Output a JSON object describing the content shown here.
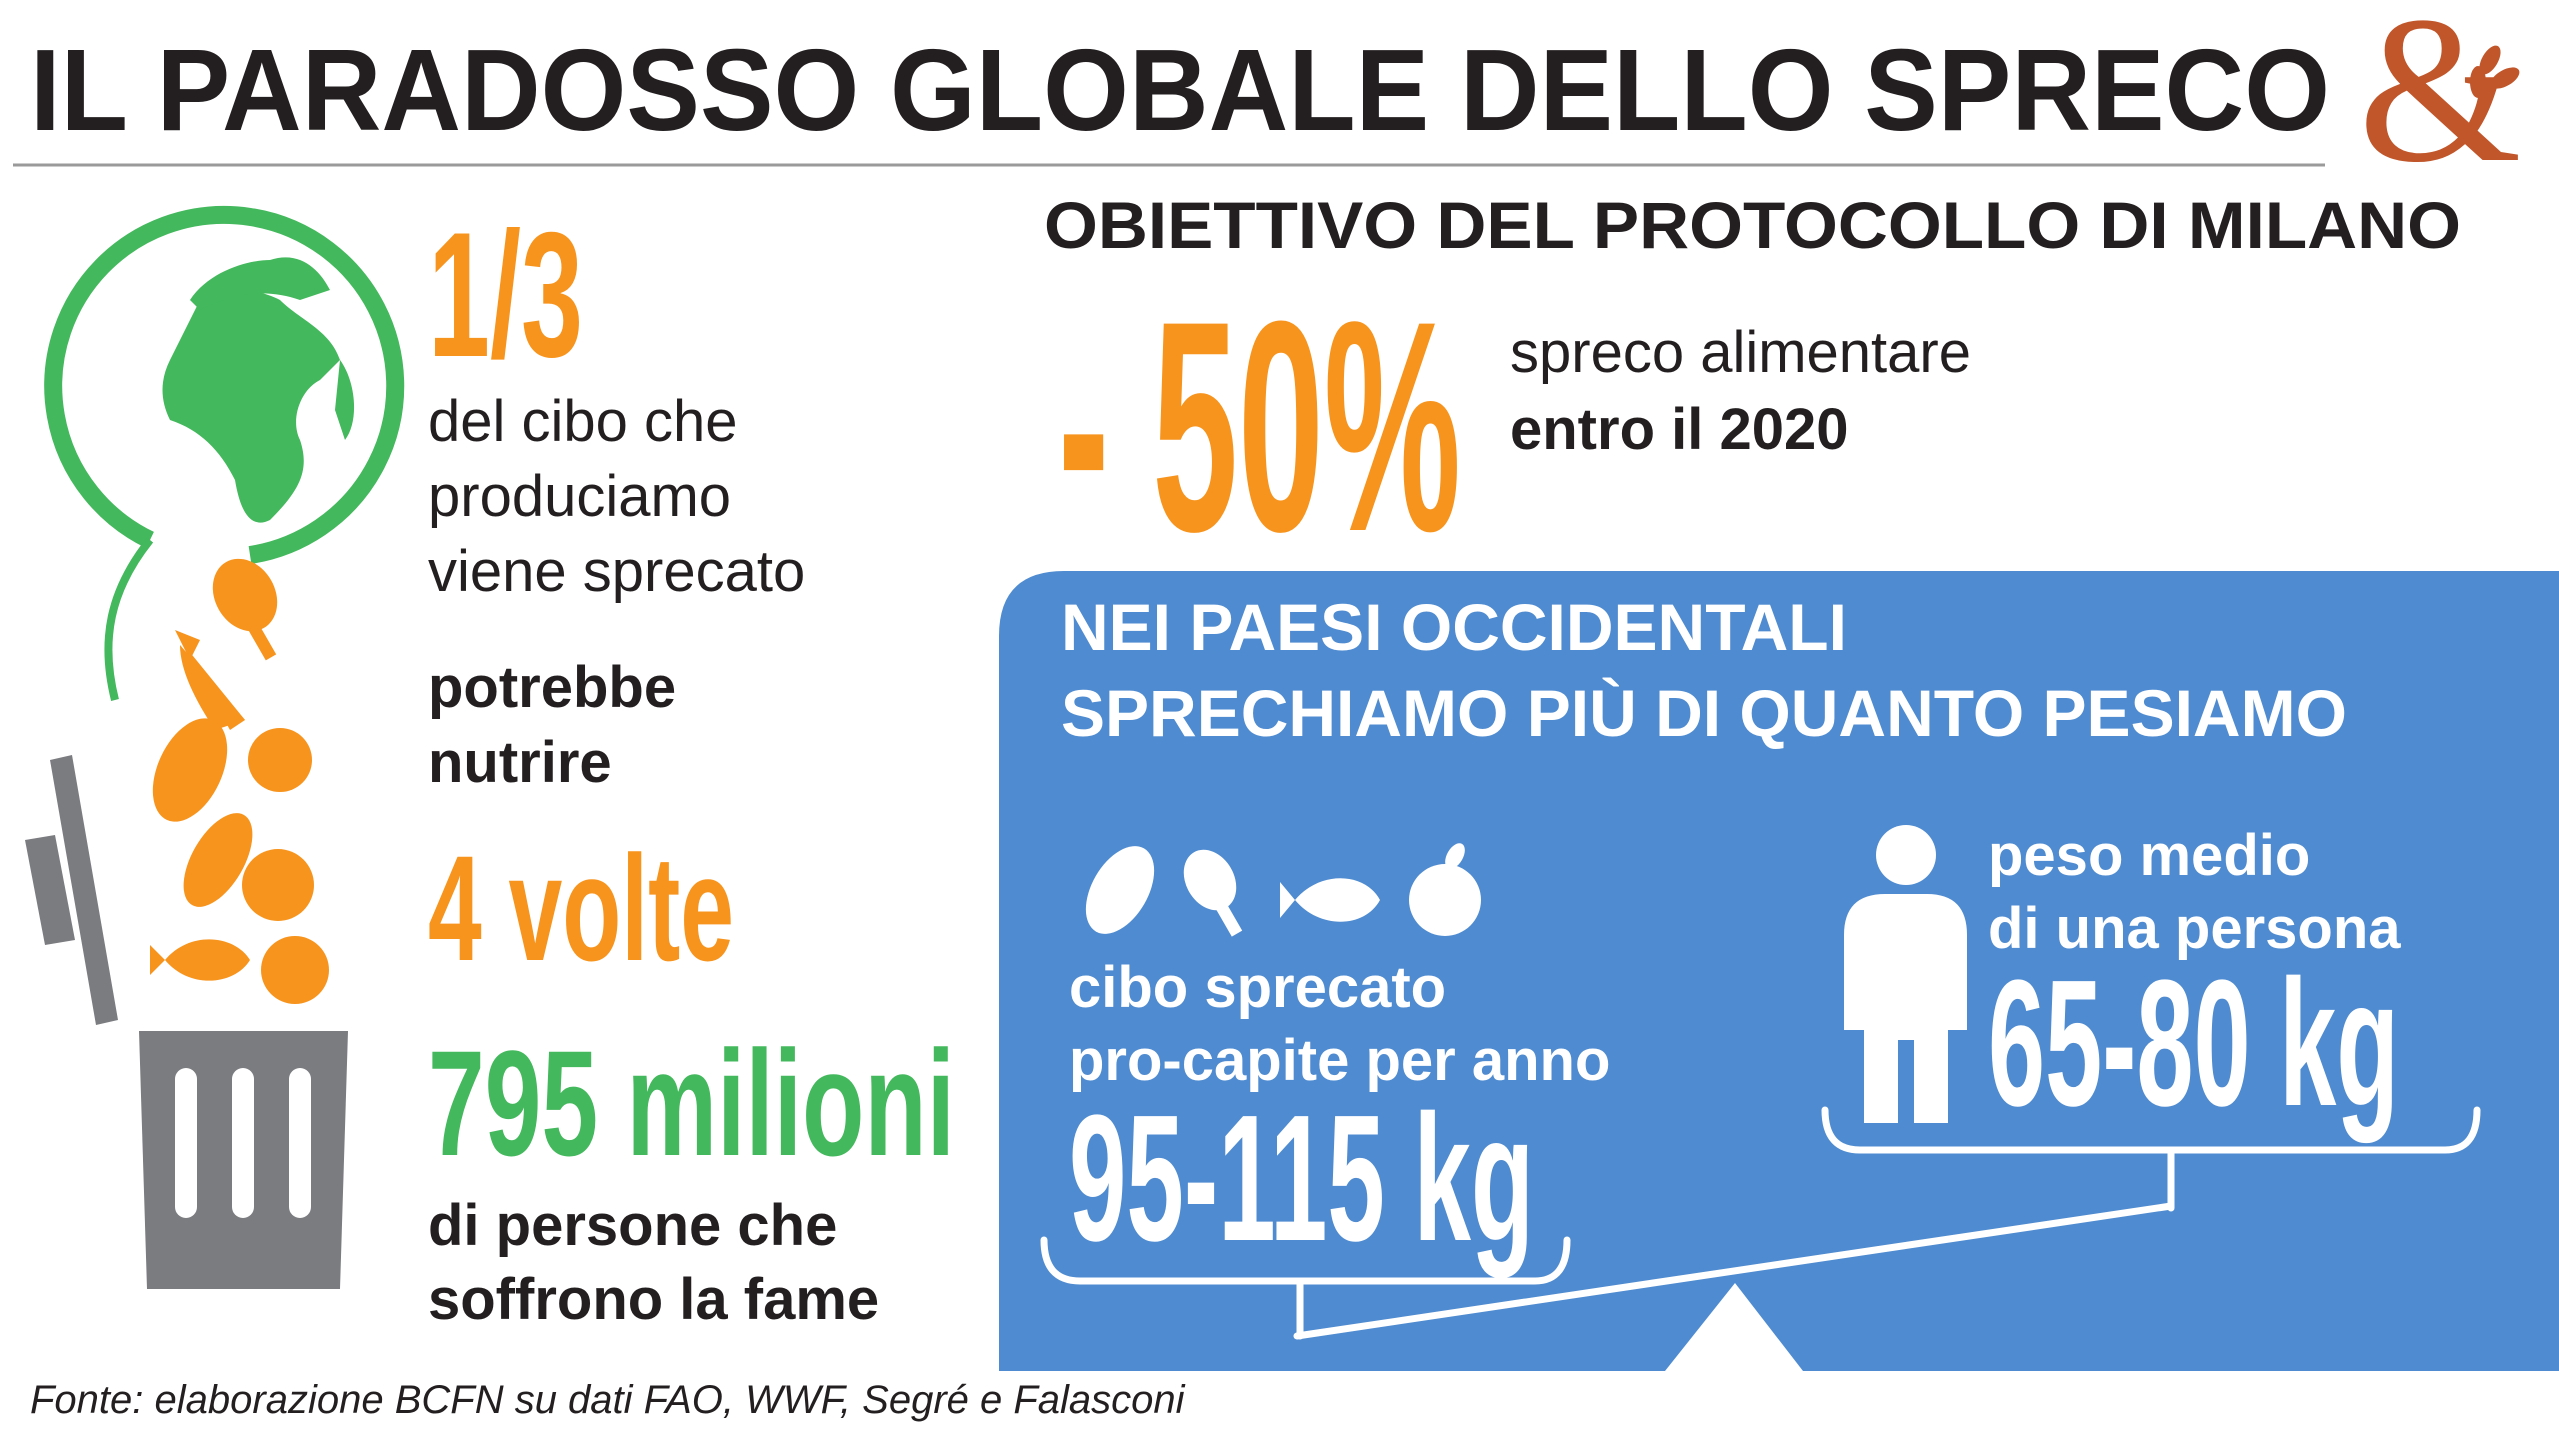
{
  "header": {
    "title": "IL PARADOSSO GLOBALE DELLO SPRECO",
    "logo": "&"
  },
  "left": {
    "fraction": "1/3",
    "fraction_text": [
      "del cibo che",
      "produciamo",
      "viene sprecato"
    ],
    "could_feed": [
      "potrebbe",
      "nutrire"
    ],
    "times": "4 volte",
    "people": "795 milioni",
    "people_text": [
      "di persone che",
      "soffrono la fame"
    ]
  },
  "goal": {
    "title": "OBIETTIVO DEL PROTOCOLLO DI MILANO",
    "value": "- 50%",
    "text": [
      "spreco alimentare",
      "entro il 2020"
    ]
  },
  "panel": {
    "title": [
      "NEI PAESI OCCIDENTALI",
      "SPRECHIAMO PIÙ DI QUANTO PESIAMO"
    ],
    "waste_label": [
      "cibo sprecato",
      "pro-capite per anno"
    ],
    "waste_value": "95-115 kg",
    "weight_label": [
      "peso medio",
      "di una persona"
    ],
    "weight_value": "65-80 kg"
  },
  "source": "Fonte: elaborazione BCFN su dati FAO, WWF, Segré e Falasconi"
}
